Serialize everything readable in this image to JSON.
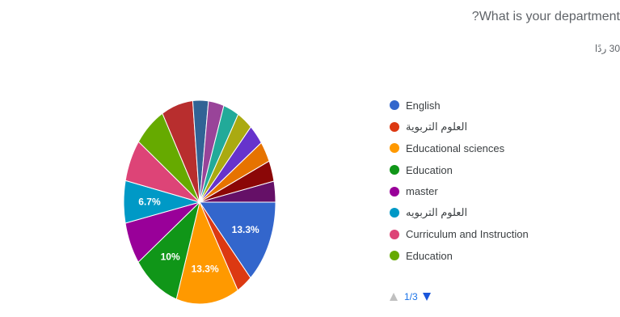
{
  "question": "?What is your department",
  "responses_count": "30 ردًا",
  "pager": {
    "text": "1/3"
  },
  "chart_data": {
    "type": "pie",
    "title": "",
    "legend_placement": "right",
    "slices": [
      {
        "label": "English",
        "value": 13.3,
        "color": "#3366cc",
        "display": "13.3%"
      },
      {
        "label": "العلوم التربوية",
        "value": 3.3,
        "color": "#dc3912",
        "display": ""
      },
      {
        "label": "Educational sciences",
        "value": 13.3,
        "color": "#ff9900",
        "display": "13.3%"
      },
      {
        "label": "Education",
        "value": 10,
        "color": "#109618",
        "display": "10%"
      },
      {
        "label": "master",
        "value": 6.7,
        "color": "#990099",
        "display": ""
      },
      {
        "label": "العلوم التربويه",
        "value": 6.7,
        "color": "#0099c6",
        "display": "6.7%"
      },
      {
        "label": "Curriculum and Instruction",
        "value": 6.7,
        "color": "#dd4477",
        "display": ""
      },
      {
        "label": "Education",
        "value": 6.7,
        "color": "#66aa00",
        "display": ""
      },
      {
        "label": "",
        "value": 6.7,
        "color": "#b82e2e",
        "display": ""
      },
      {
        "label": "",
        "value": 3.3,
        "color": "#316395",
        "display": ""
      },
      {
        "label": "",
        "value": 3.3,
        "color": "#994499",
        "display": ""
      },
      {
        "label": "",
        "value": 3.3,
        "color": "#22aa99",
        "display": ""
      },
      {
        "label": "",
        "value": 3.3,
        "color": "#aaaa11",
        "display": ""
      },
      {
        "label": "",
        "value": 3.3,
        "color": "#6633cc",
        "display": ""
      },
      {
        "label": "",
        "value": 3.3,
        "color": "#e67300",
        "display": ""
      },
      {
        "label": "",
        "value": 3.3,
        "color": "#8b0707",
        "display": ""
      },
      {
        "label": "",
        "value": 3.3,
        "color": "#651067",
        "display": ""
      }
    ]
  }
}
